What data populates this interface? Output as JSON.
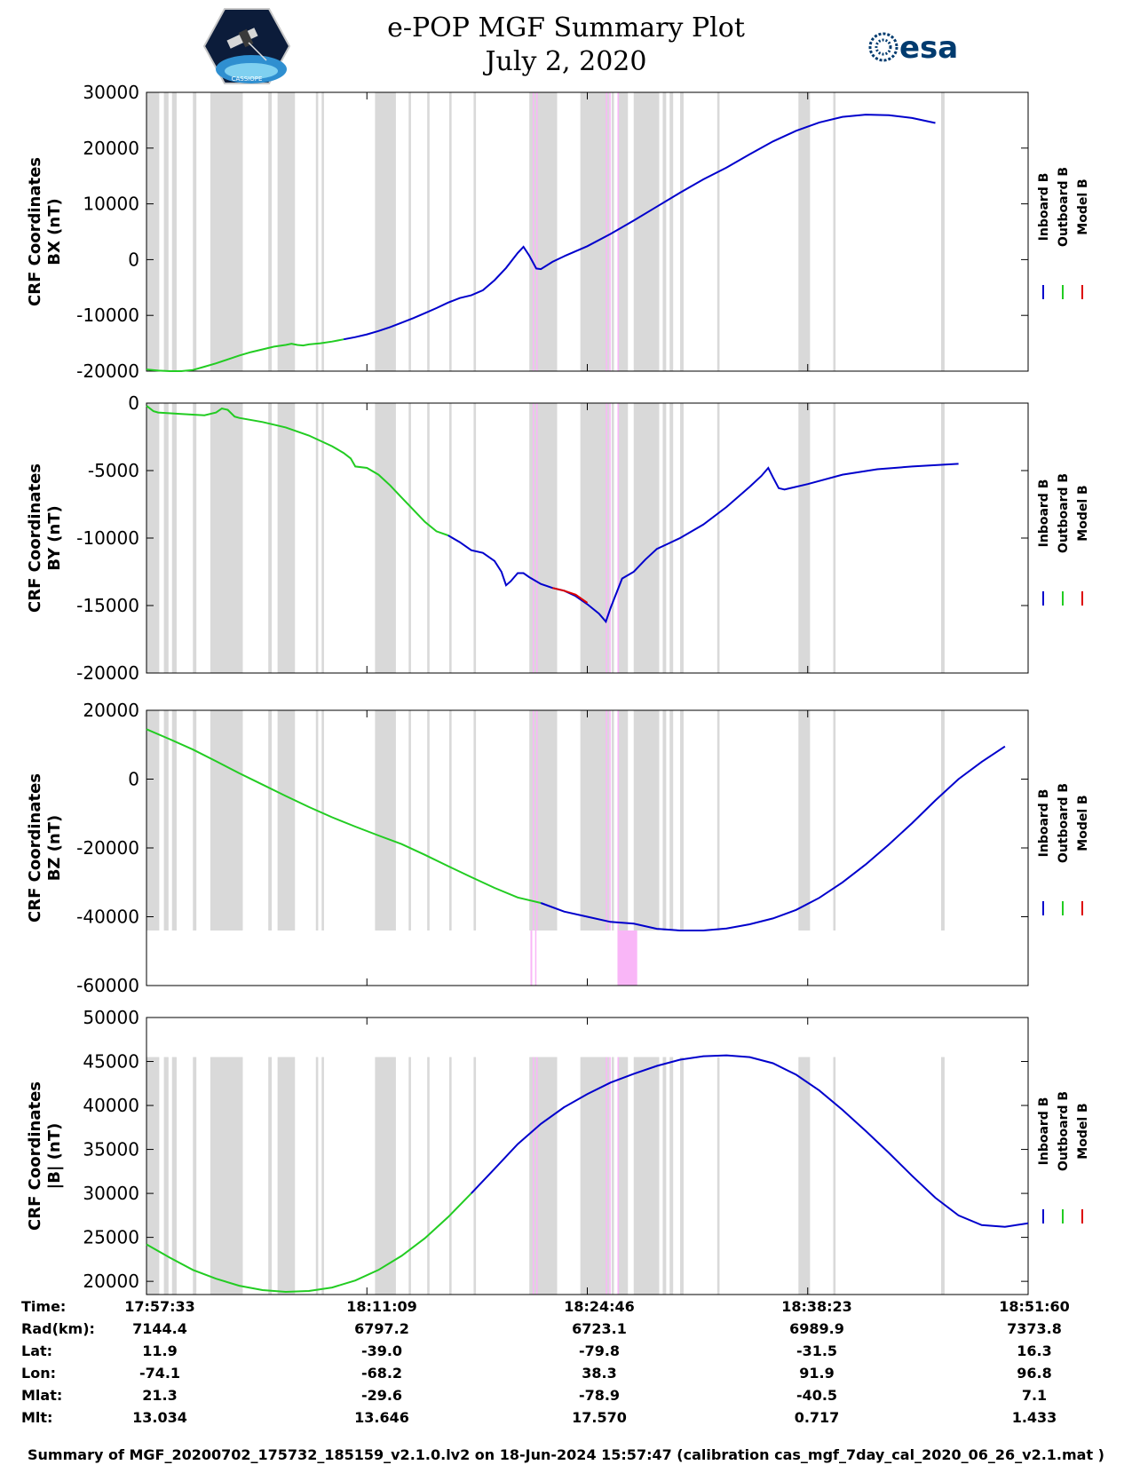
{
  "header": {
    "title": "e-POP MGF Summary Plot",
    "date": "July 2, 2020",
    "left_logo": "CASSIOPE satellite mission patch",
    "left_logo_text": "CASSIOPE",
    "right_logo": "esa-logo",
    "right_logo_text": "esa"
  },
  "legend": [
    "Inboard B",
    "Outboard B",
    "Model B"
  ],
  "colors": {
    "inboard": "#0000cc",
    "outboard": "#22cc22",
    "model": "#dd0000",
    "gap_band": "#d9d9d9",
    "flag_band": "#f9b6f7"
  },
  "chart_data": [
    {
      "type": "line",
      "name": "bx",
      "ylabel": [
        "CRF Coordinates",
        "BX (nT)"
      ],
      "ylim": [
        -20000,
        30000
      ],
      "yticks": [
        30000,
        20000,
        10000,
        0,
        -10000,
        -20000
      ],
      "ytick_labels": [
        "30000",
        "20000",
        "10000",
        "0",
        "-10000",
        "-20000"
      ],
      "band_range": [
        -20000,
        30000
      ],
      "series": [
        {
          "name": "Outboard B",
          "points": [
            [
              0,
              -19700
            ],
            [
              1,
              -19900
            ],
            [
              2,
              -20000
            ],
            [
              3,
              -20000
            ],
            [
              4,
              -19800
            ],
            [
              5,
              -19200
            ],
            [
              6,
              -18600
            ],
            [
              7,
              -17900
            ],
            [
              8,
              -17200
            ],
            [
              9,
              -16600
            ],
            [
              10,
              -16100
            ],
            [
              11,
              -15600
            ],
            [
              12,
              -15300
            ],
            [
              12.5,
              -15100
            ],
            [
              13,
              -15300
            ],
            [
              13.5,
              -15400
            ],
            [
              14,
              -15200
            ],
            [
              15,
              -15000
            ],
            [
              16,
              -14700
            ],
            [
              17,
              -14300
            ]
          ]
        },
        {
          "name": "Inboard B",
          "points": [
            [
              17,
              -14300
            ],
            [
              18,
              -13900
            ],
            [
              19,
              -13400
            ],
            [
              20,
              -12800
            ],
            [
              21,
              -12100
            ],
            [
              22,
              -11300
            ],
            [
              23,
              -10500
            ],
            [
              24,
              -9600
            ],
            [
              25,
              -8700
            ],
            [
              26,
              -7700
            ],
            [
              27,
              -6900
            ],
            [
              28,
              -6400
            ],
            [
              29,
              -5500
            ],
            [
              30,
              -3700
            ],
            [
              31,
              -1500
            ],
            [
              32,
              1200
            ],
            [
              32.5,
              2300
            ],
            [
              33,
              700
            ],
            [
              33.6,
              -1600
            ],
            [
              34,
              -1700
            ],
            [
              35,
              -400
            ],
            [
              36,
              600
            ],
            [
              38,
              2400
            ],
            [
              40,
              4600
            ],
            [
              42,
              7000
            ],
            [
              44,
              9500
            ],
            [
              46,
              12000
            ],
            [
              48,
              14400
            ],
            [
              50,
              16500
            ],
            [
              52,
              18900
            ],
            [
              54,
              21200
            ],
            [
              56,
              23100
            ],
            [
              58,
              24600
            ],
            [
              60,
              25600
            ],
            [
              62,
              26000
            ],
            [
              64,
              25900
            ],
            [
              66,
              25400
            ],
            [
              68,
              24500
            ]
          ]
        }
      ]
    },
    {
      "type": "line",
      "name": "by",
      "ylabel": [
        "CRF Coordinates",
        "BY (nT)"
      ],
      "ylim": [
        -20000,
        0
      ],
      "yticks": [
        0,
        -5000,
        -10000,
        -15000,
        -20000
      ],
      "ytick_labels": [
        "0",
        "-5000",
        "-10000",
        "-15000",
        "-20000"
      ],
      "band_range": [
        -20000,
        0
      ],
      "series": [
        {
          "name": "Outboard B",
          "points": [
            [
              0,
              -200
            ],
            [
              0.6,
              -600
            ],
            [
              1,
              -700
            ],
            [
              3,
              -800
            ],
            [
              5,
              -900
            ],
            [
              6,
              -700
            ],
            [
              6.5,
              -400
            ],
            [
              7,
              -500
            ],
            [
              7.6,
              -1000
            ],
            [
              8,
              -1100
            ],
            [
              10,
              -1400
            ],
            [
              12,
              -1800
            ],
            [
              14,
              -2400
            ],
            [
              16,
              -3200
            ],
            [
              17,
              -3700
            ],
            [
              17.6,
              -4100
            ],
            [
              18,
              -4700
            ],
            [
              19,
              -4800
            ],
            [
              20,
              -5300
            ],
            [
              21,
              -6100
            ],
            [
              22,
              -7000
            ],
            [
              23,
              -7900
            ],
            [
              24,
              -8800
            ],
            [
              25,
              -9500
            ],
            [
              26,
              -9800
            ]
          ]
        },
        {
          "name": "Inboard B",
          "points": [
            [
              26,
              -9800
            ],
            [
              27,
              -10300
            ],
            [
              28,
              -10900
            ],
            [
              29,
              -11100
            ],
            [
              30,
              -11700
            ],
            [
              30.6,
              -12500
            ],
            [
              31,
              -13500
            ],
            [
              31.4,
              -13200
            ],
            [
              32,
              -12600
            ],
            [
              32.5,
              -12600
            ],
            [
              33,
              -12900
            ],
            [
              34,
              -13400
            ],
            [
              35,
              -13700
            ],
            [
              36,
              -13900
            ],
            [
              37,
              -14300
            ],
            [
              38,
              -14900
            ],
            [
              39,
              -15600
            ],
            [
              39.6,
              -16200
            ],
            [
              40,
              -15200
            ],
            [
              41,
              -13000
            ],
            [
              42,
              -12500
            ],
            [
              43,
              -11600
            ],
            [
              44,
              -10800
            ],
            [
              45,
              -10400
            ],
            [
              46,
              -10000
            ],
            [
              48,
              -9000
            ],
            [
              50,
              -7700
            ],
            [
              52,
              -6200
            ],
            [
              53,
              -5400
            ],
            [
              53.6,
              -4800
            ],
            [
              54,
              -5500
            ],
            [
              54.5,
              -6300
            ],
            [
              55,
              -6400
            ],
            [
              57,
              -6000
            ],
            [
              60,
              -5300
            ],
            [
              63,
              -4900
            ],
            [
              66,
              -4700
            ],
            [
              70,
              -4500
            ]
          ]
        },
        {
          "name": "Model B",
          "points": [
            [
              35,
              -13700
            ],
            [
              36,
              -13900
            ],
            [
              37,
              -14200
            ],
            [
              38,
              -14800
            ]
          ]
        }
      ]
    },
    {
      "type": "line",
      "name": "bz",
      "ylabel": [
        "CRF Coordinates",
        "BZ (nT)"
      ],
      "ylim": [
        -60000,
        20000
      ],
      "yticks": [
        20000,
        0,
        -20000,
        -40000,
        -60000
      ],
      "ytick_labels": [
        "20000",
        "0",
        "-20000",
        "-40000",
        "-60000"
      ],
      "band_range": [
        -44000,
        20000
      ],
      "series": [
        {
          "name": "Outboard B",
          "points": [
            [
              0,
              14500
            ],
            [
              2,
              11600
            ],
            [
              4,
              8600
            ],
            [
              6,
              5200
            ],
            [
              8,
              1700
            ],
            [
              10,
              -1600
            ],
            [
              12,
              -4900
            ],
            [
              14,
              -8100
            ],
            [
              16,
              -11100
            ],
            [
              18,
              -13800
            ],
            [
              20,
              -16400
            ],
            [
              22,
              -18900
            ],
            [
              24,
              -22000
            ],
            [
              26,
              -25300
            ],
            [
              28,
              -28500
            ],
            [
              30,
              -31600
            ],
            [
              32,
              -34400
            ],
            [
              34,
              -36000
            ]
          ]
        },
        {
          "name": "Inboard B",
          "points": [
            [
              34,
              -36000
            ],
            [
              36,
              -38500
            ],
            [
              38,
              -40000
            ],
            [
              40,
              -41500
            ],
            [
              42,
              -42000
            ],
            [
              44,
              -43500
            ],
            [
              46,
              -44000
            ],
            [
              48,
              -44000
            ],
            [
              50,
              -43400
            ],
            [
              52,
              -42200
            ],
            [
              54,
              -40500
            ],
            [
              56,
              -38000
            ],
            [
              58,
              -34500
            ],
            [
              60,
              -30000
            ],
            [
              62,
              -24800
            ],
            [
              64,
              -19000
            ],
            [
              66,
              -12800
            ],
            [
              68,
              -6200
            ],
            [
              70,
              0
            ],
            [
              72,
              5000
            ],
            [
              74,
              9500
            ]
          ]
        }
      ]
    },
    {
      "type": "line",
      "name": "bmag",
      "ylabel": [
        "CRF Coordinates",
        "|B| (nT)"
      ],
      "ylim": [
        18500,
        50000
      ],
      "yticks": [
        50000,
        45000,
        40000,
        35000,
        30000,
        25000,
        20000
      ],
      "ytick_labels": [
        "50000",
        "45000",
        "40000",
        "35000",
        "30000",
        "25000",
        "20000"
      ],
      "band_range": [
        18500,
        45500
      ],
      "series": [
        {
          "name": "Outboard B",
          "points": [
            [
              0,
              24200
            ],
            [
              2,
              22700
            ],
            [
              4,
              21300
            ],
            [
              6,
              20300
            ],
            [
              8,
              19500
            ],
            [
              10,
              19000
            ],
            [
              12,
              18800
            ],
            [
              14,
              18900
            ],
            [
              16,
              19300
            ],
            [
              18,
              20100
            ],
            [
              20,
              21300
            ],
            [
              22,
              22900
            ],
            [
              24,
              24900
            ],
            [
              26,
              27300
            ],
            [
              28,
              30000
            ]
          ]
        },
        {
          "name": "Inboard B",
          "points": [
            [
              28,
              30000
            ],
            [
              30,
              32800
            ],
            [
              32,
              35600
            ],
            [
              34,
              37900
            ],
            [
              36,
              39800
            ],
            [
              38,
              41300
            ],
            [
              40,
              42600
            ],
            [
              42,
              43600
            ],
            [
              44,
              44500
            ],
            [
              46,
              45200
            ],
            [
              48,
              45600
            ],
            [
              50,
              45700
            ],
            [
              52,
              45500
            ],
            [
              54,
              44800
            ],
            [
              56,
              43500
            ],
            [
              58,
              41700
            ],
            [
              60,
              39500
            ],
            [
              62,
              37100
            ],
            [
              64,
              34600
            ],
            [
              66,
              32000
            ],
            [
              68,
              29500
            ],
            [
              70,
              27500
            ],
            [
              72,
              26400
            ],
            [
              74,
              26200
            ],
            [
              76,
              26600
            ]
          ]
        }
      ]
    }
  ],
  "ephemeris": {
    "rows": [
      {
        "label": "Time:",
        "values": [
          "17:57:33",
          "18:11:09",
          "18:24:46",
          "18:38:23",
          "18:51:60"
        ]
      },
      {
        "label": "Rad(km):",
        "values": [
          "7144.4",
          "6797.2",
          "6723.1",
          "6989.9",
          "7373.8"
        ]
      },
      {
        "label": "Lat:",
        "values": [
          "11.9",
          "-39.0",
          "-79.8",
          "-31.5",
          "16.3"
        ]
      },
      {
        "label": "Lon:",
        "values": [
          "-74.1",
          "-68.2",
          "38.3",
          "91.9",
          "96.8"
        ]
      },
      {
        "label": "Mlat:",
        "values": [
          "21.3",
          "-29.6",
          "-78.9",
          "-40.5",
          "7.1"
        ]
      },
      {
        "label": "Mlt:",
        "values": [
          "13.034",
          "13.646",
          "17.570",
          "0.717",
          "1.433"
        ]
      }
    ]
  },
  "footer": "Summary of MGF_20200702_175732_185159_v2.1.0.lv2 on 18-Jun-2024 15:57:47 (calibration cas_mgf_7day_cal_2020_06_26_v2.1.mat )"
}
